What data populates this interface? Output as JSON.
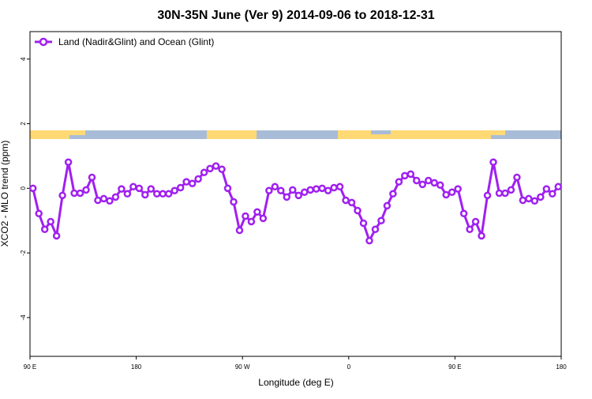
{
  "chart_data": {
    "type": "line",
    "title": "30N-35N June (Ver 9)   2014-09-06 to 2018-12-31",
    "x_label": "Longitude (deg E)",
    "y_label": "XCO2 - MLO trend (ppm)",
    "x": [
      92.5,
      97.5,
      102.5,
      107.5,
      112.5,
      117.5,
      122.5,
      127.5,
      132.5,
      137.5,
      142.5,
      147.5,
      152.5,
      157.5,
      162.5,
      167.5,
      172.5,
      177.5,
      182.5,
      187.5,
      192.5,
      197.5,
      202.5,
      207.5,
      212.5,
      217.5,
      222.5,
      227.5,
      232.5,
      237.5,
      242.5,
      247.5,
      252.5,
      257.5,
      262.5,
      267.5,
      272.5,
      277.5,
      282.5,
      287.5,
      292.5,
      297.5,
      302.5,
      307.5,
      312.5,
      317.5,
      322.5,
      327.5,
      332.5,
      337.5,
      342.5,
      347.5,
      352.5,
      357.5,
      362.5,
      367.5,
      372.5,
      377.5,
      382.5,
      387.5,
      392.5,
      397.5,
      402.5,
      407.5,
      412.5,
      417.5,
      422.5,
      427.5,
      432.5,
      437.5,
      442.5,
      447.5,
      452.5,
      457.5,
      462.5,
      467.5,
      472.5,
      477.5,
      482.5,
      487.5,
      492.5,
      497.5,
      502.5,
      507.5,
      512.5,
      517.5,
      522.5,
      527.5,
      532.5,
      537.5
    ],
    "series": [
      {
        "name": "Land (Nadir&Glint) and Ocean (Glint)",
        "color": "#a020f0",
        "values": [
          0,
          -0.78,
          -1.27,
          -1.03,
          -1.47,
          -0.22,
          0.81,
          -0.15,
          -0.15,
          -0.05,
          0.34,
          -0.37,
          -0.32,
          -0.39,
          -0.27,
          -0.02,
          -0.17,
          0.05,
          0,
          -0.2,
          -0.02,
          -0.17,
          -0.17,
          -0.17,
          -0.07,
          0.02,
          0.2,
          0.15,
          0.29,
          0.49,
          0.61,
          0.69,
          0.59,
          0,
          -0.42,
          -1.3,
          -0.86,
          -1.03,
          -0.73,
          -0.93,
          -0.07,
          0.05,
          -0.07,
          -0.27,
          -0.05,
          -0.22,
          -0.12,
          -0.05,
          -0.02,
          0,
          -0.07,
          0.02,
          0.05,
          -0.37,
          -0.44,
          -0.69,
          -1.08,
          -1.62,
          -1.27,
          -1,
          -0.54,
          -0.17,
          0.2,
          0.39,
          0.44,
          0.24,
          0.12,
          0.24,
          0.17,
          0.1,
          -0.2,
          -0.12,
          -0.02,
          -0.78,
          -1.27,
          -1.03,
          -1.47,
          -0.22,
          0.81,
          -0.15,
          -0.15,
          -0.05,
          0.34,
          -0.37,
          -0.32,
          -0.39,
          -0.27,
          -0.02,
          -0.17,
          0.05
        ]
      }
    ],
    "xlim": [
      90,
      540
    ],
    "xticks": [
      {
        "value": 90,
        "label": "90 E"
      },
      180,
      {
        "value": 270,
        "label": "90 W"
      },
      {
        "value": 360,
        "label": "0"
      },
      {
        "value": 450,
        "label": "90 E"
      },
      {
        "value": 540,
        "label": "180"
      }
    ],
    "ylim": [
      -5.2,
      4.85
    ],
    "yticks": [
      -4,
      -2,
      0,
      2,
      4
    ],
    "grid": false,
    "legend_position": "top-left"
  }
}
